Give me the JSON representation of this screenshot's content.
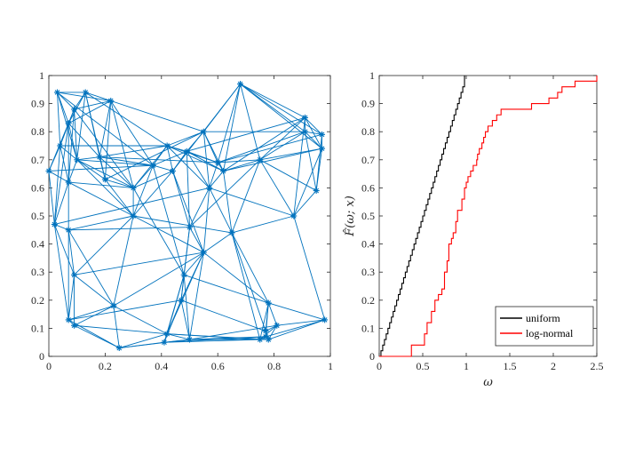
{
  "chart_data": [
    {
      "type": "scatter",
      "title": "",
      "xlabel": "",
      "ylabel": "",
      "xlim": [
        0,
        1
      ],
      "ylim": [
        0,
        1
      ],
      "xticks": [
        "0",
        "0.2",
        "0.4",
        "0.6",
        "0.8",
        "1"
      ],
      "yticks": [
        "0",
        "0.1",
        "0.2",
        "0.3",
        "0.4",
        "0.5",
        "0.6",
        "0.7",
        "0.8",
        "0.9",
        "1"
      ],
      "marker": "asterisk",
      "color": "#0072BD",
      "points": [
        [
          0.03,
          0.94
        ],
        [
          0.13,
          0.94
        ],
        [
          0.22,
          0.91
        ],
        [
          0.09,
          0.88
        ],
        [
          0.07,
          0.83
        ],
        [
          0.04,
          0.75
        ],
        [
          0.1,
          0.7
        ],
        [
          0.0,
          0.66
        ],
        [
          0.07,
          0.62
        ],
        [
          0.02,
          0.47
        ],
        [
          0.07,
          0.45
        ],
        [
          0.09,
          0.29
        ],
        [
          0.07,
          0.13
        ],
        [
          0.09,
          0.11
        ],
        [
          0.23,
          0.18
        ],
        [
          0.25,
          0.03
        ],
        [
          0.2,
          0.63
        ],
        [
          0.18,
          0.71
        ],
        [
          0.3,
          0.6
        ],
        [
          0.3,
          0.5
        ],
        [
          0.37,
          0.68
        ],
        [
          0.42,
          0.75
        ],
        [
          0.44,
          0.66
        ],
        [
          0.49,
          0.73
        ],
        [
          0.55,
          0.8
        ],
        [
          0.5,
          0.46
        ],
        [
          0.55,
          0.37
        ],
        [
          0.48,
          0.29
        ],
        [
          0.47,
          0.2
        ],
        [
          0.42,
          0.08
        ],
        [
          0.41,
          0.05
        ],
        [
          0.5,
          0.06
        ],
        [
          0.57,
          0.6
        ],
        [
          0.6,
          0.69
        ],
        [
          0.62,
          0.66
        ],
        [
          0.68,
          0.97
        ],
        [
          0.65,
          0.44
        ],
        [
          0.75,
          0.7
        ],
        [
          0.75,
          0.06
        ],
        [
          0.77,
          0.07
        ],
        [
          0.78,
          0.19
        ],
        [
          0.77,
          0.09
        ],
        [
          0.78,
          0.06
        ],
        [
          0.81,
          0.11
        ],
        [
          0.87,
          0.5
        ],
        [
          0.91,
          0.85
        ],
        [
          0.91,
          0.8
        ],
        [
          0.95,
          0.59
        ],
        [
          0.97,
          0.74
        ],
        [
          0.97,
          0.79
        ],
        [
          0.98,
          0.13
        ]
      ],
      "edges": [
        [
          0,
          1
        ],
        [
          0,
          2
        ],
        [
          0,
          3
        ],
        [
          0,
          4
        ],
        [
          0,
          5
        ],
        [
          0,
          6
        ],
        [
          1,
          2
        ],
        [
          1,
          3
        ],
        [
          1,
          4
        ],
        [
          1,
          6
        ],
        [
          1,
          16
        ],
        [
          1,
          17
        ],
        [
          2,
          3
        ],
        [
          2,
          4
        ],
        [
          2,
          16
        ],
        [
          2,
          17
        ],
        [
          2,
          18
        ],
        [
          2,
          20
        ],
        [
          3,
          4
        ],
        [
          3,
          5
        ],
        [
          3,
          6
        ],
        [
          3,
          8
        ],
        [
          4,
          5
        ],
        [
          4,
          6
        ],
        [
          4,
          7
        ],
        [
          4,
          8
        ],
        [
          4,
          9
        ],
        [
          5,
          6
        ],
        [
          5,
          7
        ],
        [
          5,
          8
        ],
        [
          5,
          9
        ],
        [
          6,
          8
        ],
        [
          6,
          16
        ],
        [
          6,
          17
        ],
        [
          6,
          18
        ],
        [
          6,
          19
        ],
        [
          7,
          8
        ],
        [
          7,
          9
        ],
        [
          8,
          9
        ],
        [
          8,
          10
        ],
        [
          8,
          19
        ],
        [
          9,
          10
        ],
        [
          9,
          11
        ],
        [
          9,
          12
        ],
        [
          10,
          11
        ],
        [
          10,
          12
        ],
        [
          10,
          19
        ],
        [
          11,
          12
        ],
        [
          11,
          13
        ],
        [
          11,
          14
        ],
        [
          11,
          19
        ],
        [
          12,
          13
        ],
        [
          12,
          14
        ],
        [
          13,
          14
        ],
        [
          13,
          15
        ],
        [
          14,
          15
        ],
        [
          14,
          19
        ],
        [
          14,
          29
        ],
        [
          14,
          26
        ],
        [
          15,
          29
        ],
        [
          15,
          30
        ],
        [
          15,
          31
        ],
        [
          16,
          17
        ],
        [
          16,
          18
        ],
        [
          16,
          19
        ],
        [
          17,
          18
        ],
        [
          17,
          20
        ],
        [
          17,
          21
        ],
        [
          18,
          19
        ],
        [
          18,
          20
        ],
        [
          18,
          21
        ],
        [
          18,
          22
        ],
        [
          18,
          27
        ],
        [
          19,
          20
        ],
        [
          19,
          22
        ],
        [
          19,
          26
        ],
        [
          20,
          21
        ],
        [
          20,
          22
        ],
        [
          20,
          23
        ],
        [
          21,
          22
        ],
        [
          21,
          23
        ],
        [
          21,
          24
        ],
        [
          21,
          32
        ],
        [
          21,
          33
        ],
        [
          22,
          23
        ],
        [
          22,
          25
        ],
        [
          22,
          26
        ],
        [
          23,
          24
        ],
        [
          23,
          32
        ],
        [
          23,
          33
        ],
        [
          23,
          34
        ],
        [
          23,
          25
        ],
        [
          24,
          32
        ],
        [
          24,
          33
        ],
        [
          24,
          34
        ],
        [
          24,
          35
        ],
        [
          25,
          26
        ],
        [
          25,
          27
        ],
        [
          25,
          28
        ],
        [
          25,
          32
        ],
        [
          26,
          27
        ],
        [
          26,
          28
        ],
        [
          26,
          29
        ],
        [
          26,
          32
        ],
        [
          26,
          36
        ],
        [
          26,
          40
        ],
        [
          27,
          28
        ],
        [
          27,
          29
        ],
        [
          27,
          30
        ],
        [
          28,
          29
        ],
        [
          28,
          30
        ],
        [
          28,
          31
        ],
        [
          29,
          30
        ],
        [
          29,
          31
        ],
        [
          29,
          38
        ],
        [
          30,
          31
        ],
        [
          30,
          38
        ],
        [
          31,
          38
        ],
        [
          31,
          39
        ],
        [
          31,
          42
        ],
        [
          32,
          33
        ],
        [
          32,
          34
        ],
        [
          32,
          36
        ],
        [
          33,
          34
        ],
        [
          33,
          35
        ],
        [
          33,
          37
        ],
        [
          34,
          35
        ],
        [
          34,
          36
        ],
        [
          34,
          37
        ],
        [
          34,
          45
        ],
        [
          35,
          37
        ],
        [
          35,
          45
        ],
        [
          35,
          46
        ],
        [
          35,
          49
        ],
        [
          36,
          37
        ],
        [
          36,
          40
        ],
        [
          36,
          44
        ],
        [
          36,
          38
        ],
        [
          37,
          44
        ],
        [
          37,
          45
        ],
        [
          37,
          46
        ],
        [
          37,
          47
        ],
        [
          38,
          39
        ],
        [
          38,
          40
        ],
        [
          38,
          42
        ],
        [
          39,
          40
        ],
        [
          39,
          41
        ],
        [
          39,
          42
        ],
        [
          40,
          41
        ],
        [
          40,
          43
        ],
        [
          41,
          42
        ],
        [
          41,
          43
        ],
        [
          42,
          43
        ],
        [
          43,
          50
        ],
        [
          44,
          47
        ],
        [
          44,
          48
        ],
        [
          44,
          50
        ],
        [
          45,
          46
        ],
        [
          45,
          48
        ],
        [
          45,
          49
        ],
        [
          46,
          47
        ],
        [
          46,
          48
        ],
        [
          46,
          49
        ],
        [
          47,
          48
        ],
        [
          47,
          49
        ],
        [
          48,
          49
        ],
        [
          0,
          20
        ],
        [
          3,
          18
        ],
        [
          5,
          21
        ],
        [
          7,
          20
        ],
        [
          9,
          32
        ],
        [
          10,
          25
        ],
        [
          11,
          26
        ],
        [
          12,
          28
        ],
        [
          13,
          29
        ],
        [
          16,
          24
        ],
        [
          17,
          33
        ],
        [
          19,
          36
        ],
        [
          22,
          35
        ],
        [
          24,
          46
        ],
        [
          27,
          40
        ],
        [
          28,
          41
        ],
        [
          30,
          39
        ],
        [
          31,
          43
        ],
        [
          32,
          44
        ],
        [
          33,
          46
        ],
        [
          34,
          48
        ],
        [
          36,
          41
        ],
        [
          38,
          43
        ],
        [
          1,
          21
        ],
        [
          2,
          24
        ],
        [
          4,
          17
        ],
        [
          6,
          20
        ],
        [
          8,
          18
        ],
        [
          10,
          14
        ],
        [
          12,
          15
        ],
        [
          20,
          27
        ],
        [
          21,
          34
        ],
        [
          23,
          45
        ],
        [
          25,
          37
        ],
        [
          26,
          31
        ],
        [
          27,
          31
        ],
        [
          29,
          42
        ],
        [
          33,
          49
        ],
        [
          35,
          48
        ],
        [
          37,
          48
        ],
        [
          40,
          50
        ],
        [
          42,
          50
        ],
        [
          44,
          45
        ],
        [
          39,
          50
        ]
      ]
    },
    {
      "type": "line",
      "title": "",
      "xlabel": "ω",
      "ylabel": "F̂(ω; x)",
      "xlim": [
        0,
        2.5
      ],
      "ylim": [
        0,
        1
      ],
      "xticks": [
        "0",
        "0.5",
        "1",
        "1.5",
        "2",
        "2.5"
      ],
      "yticks": [
        "0",
        "0.1",
        "0.2",
        "0.3",
        "0.4",
        "0.5",
        "0.6",
        "0.7",
        "0.8",
        "0.9",
        "1"
      ],
      "legend_position": "bottom-right",
      "series": [
        {
          "name": "uniform",
          "color": "#000000",
          "step": true,
          "x": [
            0,
            0.02,
            0.04,
            0.06,
            0.08,
            0.1,
            0.12,
            0.14,
            0.16,
            0.18,
            0.2,
            0.22,
            0.24,
            0.26,
            0.28,
            0.3,
            0.32,
            0.34,
            0.36,
            0.38,
            0.4,
            0.42,
            0.44,
            0.46,
            0.48,
            0.5,
            0.52,
            0.54,
            0.56,
            0.58,
            0.6,
            0.62,
            0.64,
            0.66,
            0.68,
            0.7,
            0.72,
            0.74,
            0.76,
            0.78,
            0.8,
            0.82,
            0.84,
            0.86,
            0.88,
            0.9,
            0.92,
            0.94,
            0.96,
            0.98
          ],
          "y": [
            0,
            0.02,
            0.04,
            0.06,
            0.08,
            0.1,
            0.12,
            0.14,
            0.16,
            0.18,
            0.2,
            0.22,
            0.24,
            0.26,
            0.28,
            0.3,
            0.32,
            0.34,
            0.36,
            0.38,
            0.4,
            0.42,
            0.44,
            0.46,
            0.48,
            0.5,
            0.52,
            0.54,
            0.56,
            0.58,
            0.6,
            0.62,
            0.64,
            0.66,
            0.68,
            0.7,
            0.72,
            0.74,
            0.76,
            0.78,
            0.8,
            0.82,
            0.84,
            0.86,
            0.88,
            0.9,
            0.92,
            0.94,
            0.96,
            1.0
          ]
        },
        {
          "name": "log-normal",
          "color": "#ff0000",
          "step": true,
          "x": [
            0,
            0.37,
            0.47,
            0.52,
            0.55,
            0.6,
            0.64,
            0.68,
            0.72,
            0.75,
            0.78,
            0.8,
            0.83,
            0.85,
            0.88,
            0.9,
            0.95,
            0.98,
            1.0,
            1.02,
            1.05,
            1.08,
            1.12,
            1.13,
            1.15,
            1.18,
            1.2,
            1.22,
            1.25,
            1.28,
            1.3,
            1.35,
            1.4,
            1.5,
            1.75,
            1.85,
            1.95,
            2.05,
            2.1,
            2.25,
            2.5
          ],
          "y": [
            0,
            0.04,
            0.04,
            0.08,
            0.12,
            0.16,
            0.2,
            0.22,
            0.24,
            0.3,
            0.34,
            0.4,
            0.42,
            0.44,
            0.48,
            0.52,
            0.56,
            0.6,
            0.62,
            0.64,
            0.66,
            0.68,
            0.7,
            0.72,
            0.74,
            0.76,
            0.78,
            0.8,
            0.82,
            0.82,
            0.84,
            0.86,
            0.88,
            0.88,
            0.9,
            0.9,
            0.92,
            0.94,
            0.96,
            0.98,
            1.0
          ]
        }
      ]
    }
  ]
}
